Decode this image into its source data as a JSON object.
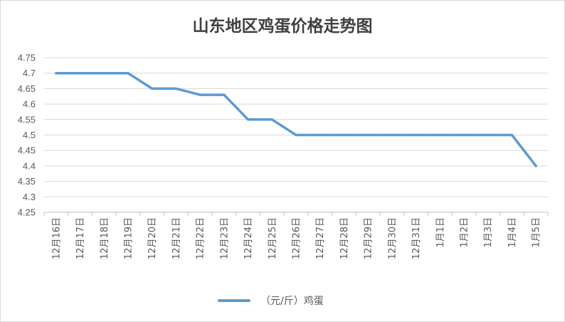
{
  "chart_data": {
    "type": "line",
    "title": "山东地区鸡蛋价格走势图",
    "categories": [
      "12月16日",
      "12月17日",
      "12月18日",
      "12月19日",
      "12月20日",
      "12月21日",
      "12月22日",
      "12月23日",
      "12月24日",
      "12月25日",
      "12月26日",
      "12月27日",
      "12月28日",
      "12月29日",
      "12月30日",
      "12月31日",
      "1月1日",
      "1月2日",
      "1月3日",
      "1月4日",
      "1月5日"
    ],
    "series": [
      {
        "name": "（元/斤）鸡蛋",
        "values": [
          4.7,
          4.7,
          4.7,
          4.7,
          4.65,
          4.65,
          4.63,
          4.63,
          4.55,
          4.55,
          4.5,
          4.5,
          4.5,
          4.5,
          4.5,
          4.5,
          4.5,
          4.5,
          4.5,
          4.5,
          4.4
        ]
      }
    ],
    "yticks": [
      "4.25",
      "4.3",
      "4.35",
      "4.4",
      "4.45",
      "4.5",
      "4.55",
      "4.6",
      "4.65",
      "4.7",
      "4.75"
    ],
    "ylim": [
      4.25,
      4.75
    ],
    "grid": true,
    "legend_position": "bottom",
    "colors": {
      "series": "#5b9bd5",
      "grid": "#d9d9d9",
      "axis": "#bfbfbf"
    }
  }
}
